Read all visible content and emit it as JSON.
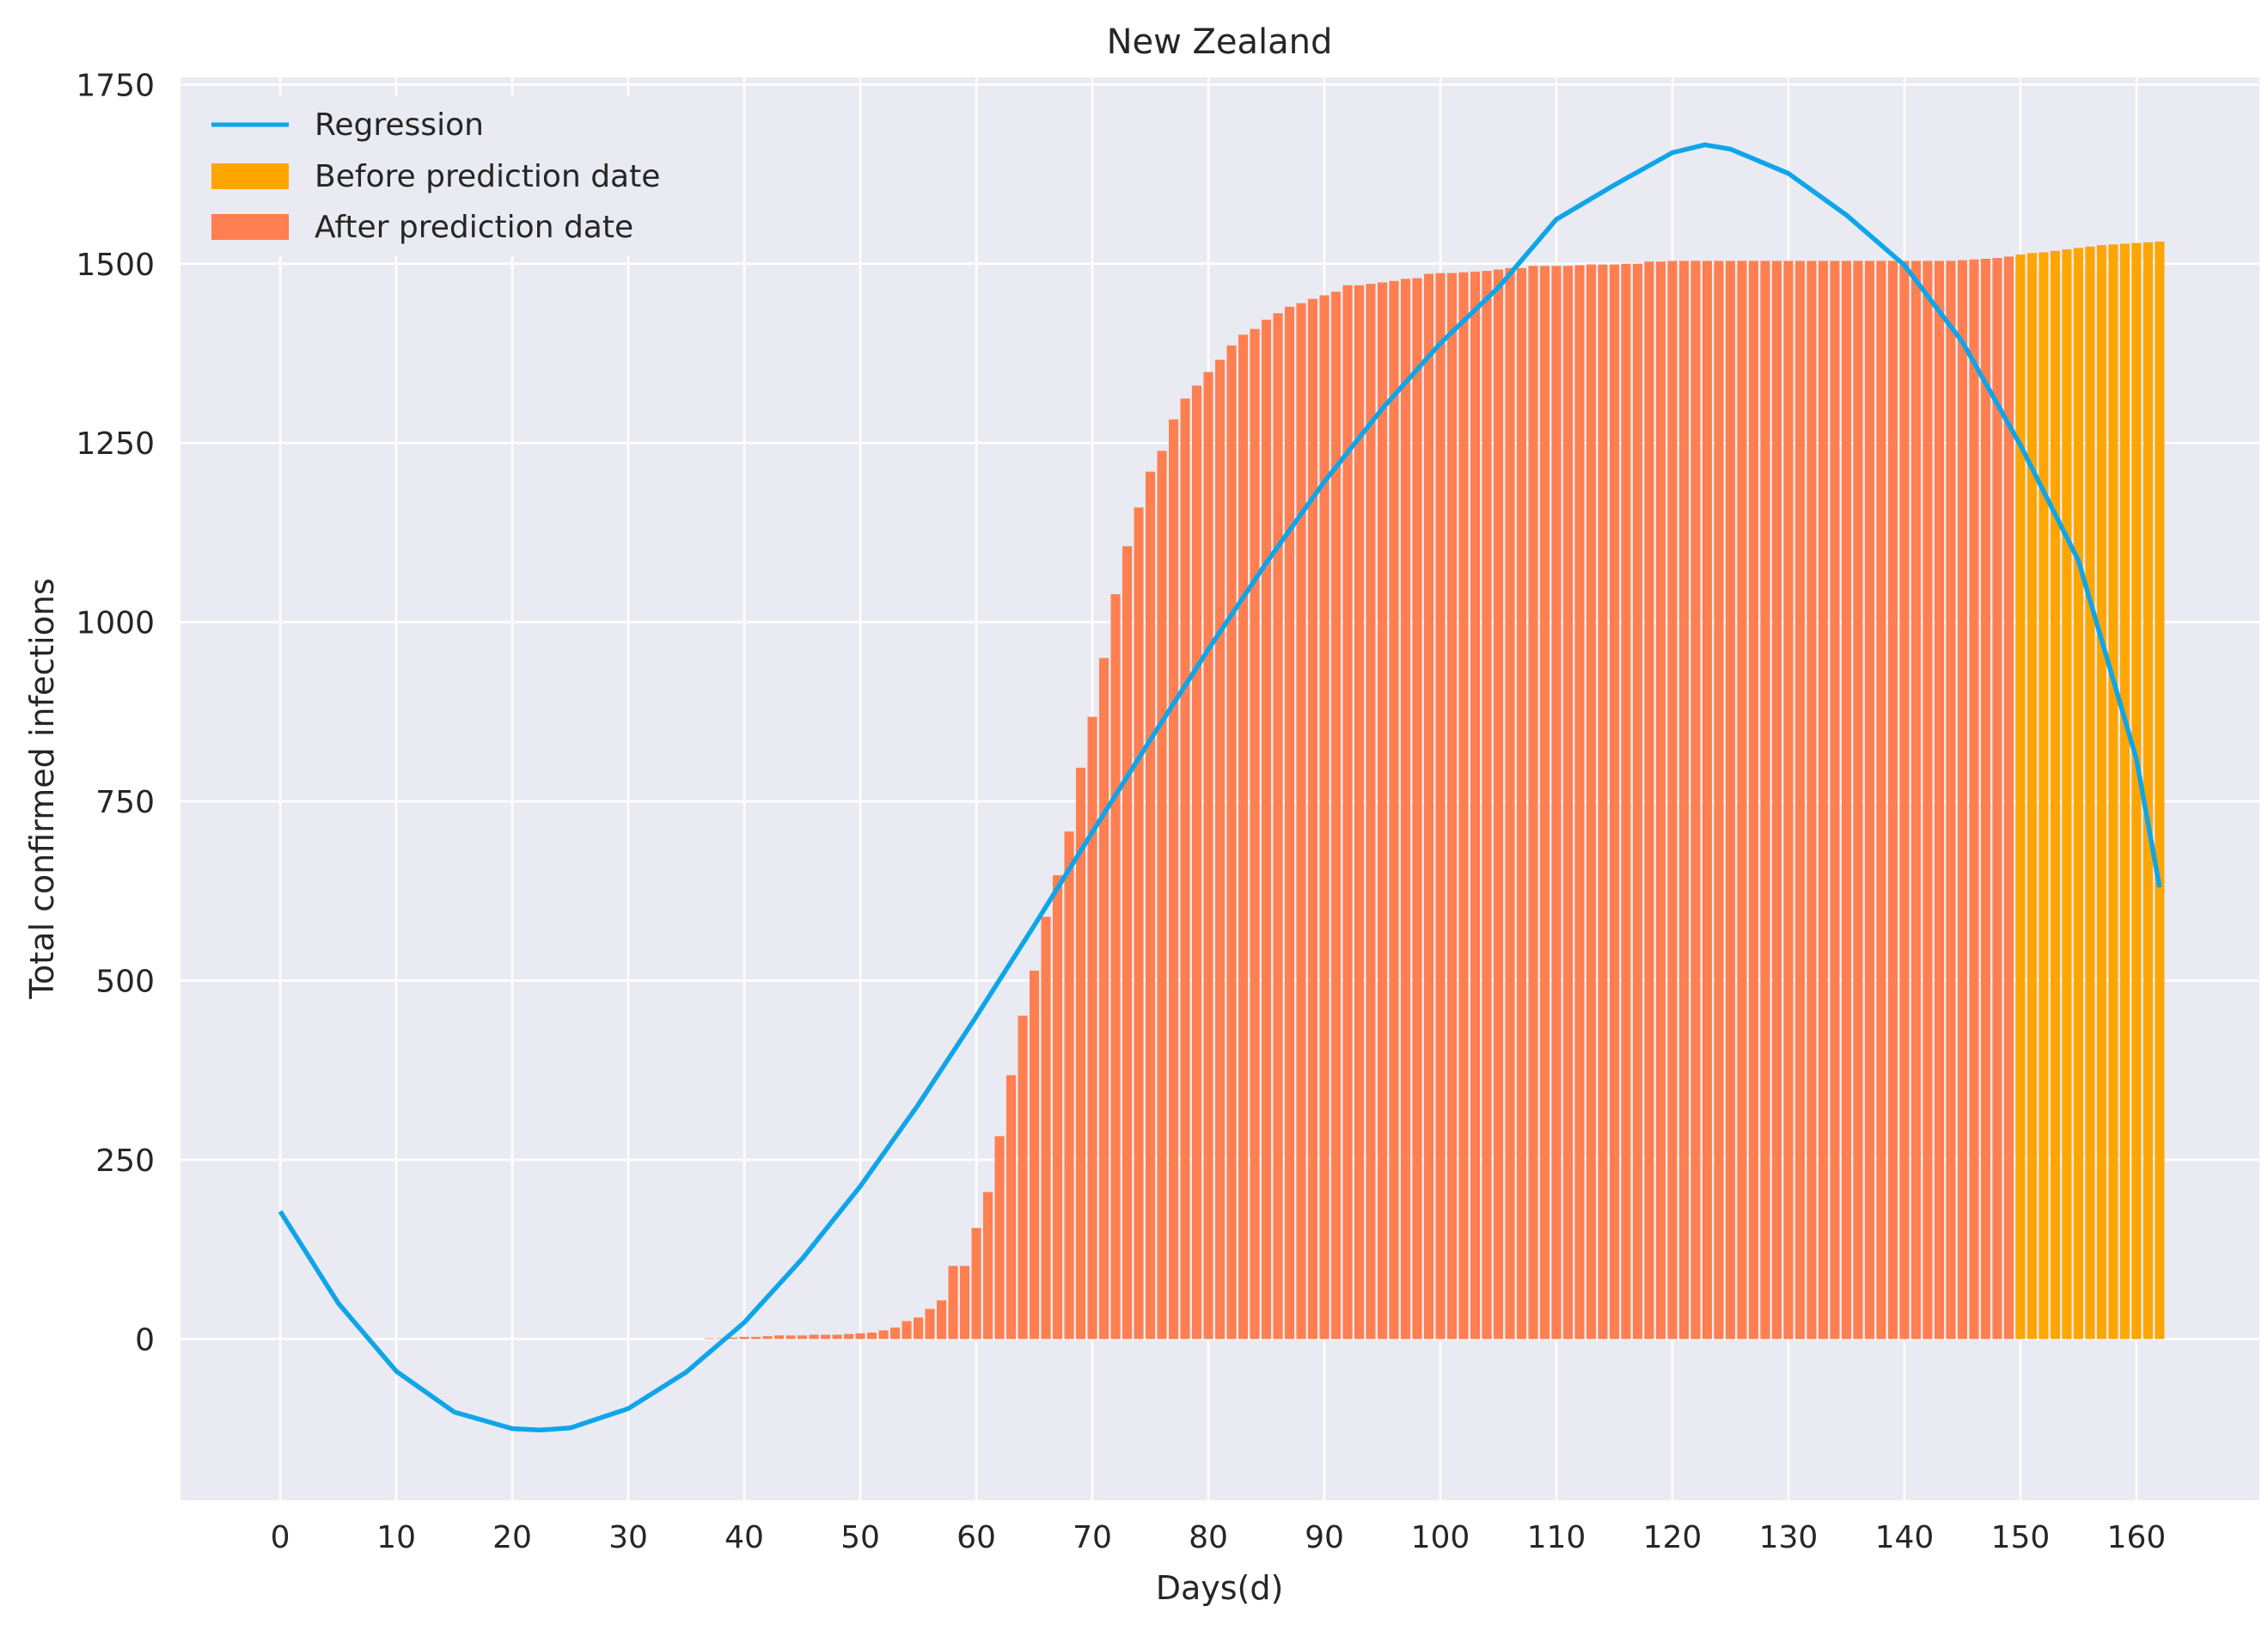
{
  "chart_data": {
    "type": "bar",
    "title": "New Zealand",
    "xlabel": "Days(d)",
    "ylabel": "Total confirmed infections",
    "xlim": [
      -8.6,
      170.6
    ],
    "ylim": [
      -225,
      1760
    ],
    "xticks": [
      0,
      10,
      20,
      30,
      40,
      50,
      60,
      70,
      80,
      90,
      100,
      110,
      120,
      130,
      140,
      150,
      160
    ],
    "yticks": [
      0,
      250,
      500,
      750,
      1000,
      1250,
      1500,
      1750
    ],
    "grid": true,
    "legend_position": "top-left",
    "colors": {
      "background": "#EAEAF2",
      "grid": "#FFFFFF",
      "regression": "#0EA5E9",
      "before": "#FFA500",
      "after": "#FF7F50"
    },
    "series": [
      {
        "name": "After prediction date",
        "kind": "bar",
        "x_start": 37,
        "values": [
          1,
          1,
          2,
          3,
          3,
          4,
          5,
          5,
          5,
          6,
          6,
          6,
          7,
          8,
          9,
          12,
          16,
          25,
          30,
          42,
          54,
          102,
          102,
          155,
          205,
          283,
          368,
          451,
          514,
          589,
          647,
          708,
          797,
          868,
          950,
          1039,
          1106,
          1160,
          1210,
          1239,
          1283,
          1312,
          1330,
          1349,
          1366,
          1386,
          1401,
          1409,
          1422,
          1431,
          1440,
          1445,
          1451,
          1456,
          1461,
          1470,
          1470,
          1472,
          1474,
          1476,
          1479,
          1480,
          1486,
          1487,
          1487,
          1488,
          1489,
          1490,
          1492,
          1494,
          1494,
          1497,
          1497,
          1497,
          1497,
          1498,
          1499,
          1499,
          1499,
          1500,
          1500,
          1503,
          1503,
          1504,
          1504,
          1504,
          1504,
          1504,
          1504,
          1504,
          1504,
          1504,
          1504,
          1504,
          1504,
          1504,
          1504,
          1504,
          1504,
          1504,
          1504,
          1504,
          1504,
          1504,
          1504,
          1504,
          1504,
          1504,
          1505,
          1506,
          1507,
          1508,
          1510
        ]
      },
      {
        "name": "Before prediction date",
        "kind": "bar",
        "x_start": 150,
        "values": [
          1513,
          1515,
          1516,
          1518,
          1520,
          1522,
          1524,
          1526,
          1527,
          1528,
          1529,
          1530,
          1531
        ]
      },
      {
        "name": "Regression",
        "kind": "line",
        "x": [
          0,
          5,
          10,
          15,
          20,
          22.4,
          25,
          30,
          35,
          40,
          45,
          50,
          55,
          60,
          65,
          70,
          75,
          80,
          85,
          90,
          95,
          100,
          105,
          110,
          115,
          120,
          122.8,
          125,
          130,
          135,
          140,
          145,
          150,
          155,
          160,
          162
        ],
        "y": [
          178,
          50,
          -45,
          -102,
          -125,
          -127,
          -124,
          -97,
          -46,
          23,
          112,
          213,
          327,
          450,
          577,
          707,
          836,
          962,
          1083,
          1196,
          1298,
          1389,
          1467,
          1562,
          1610,
          1655,
          1666,
          1660,
          1626,
          1568,
          1498,
          1391,
          1247,
          1086,
          809,
          630
        ]
      }
    ]
  }
}
